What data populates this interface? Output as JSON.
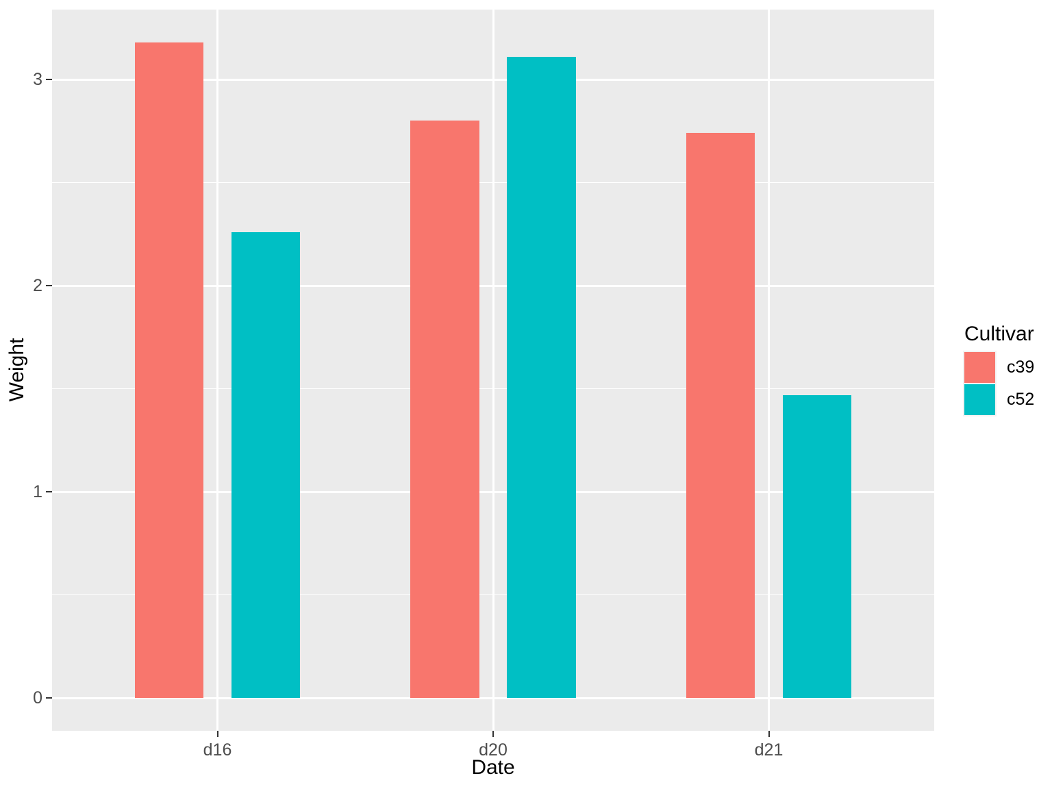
{
  "chart_data": {
    "type": "bar",
    "title": "",
    "xlabel": "Date",
    "ylabel": "Weight",
    "categories": [
      "d16",
      "d20",
      "d21"
    ],
    "series": [
      {
        "name": "c39",
        "color": "#F8766D",
        "values": [
          3.18,
          2.8,
          2.74
        ]
      },
      {
        "name": "c52",
        "color": "#00BFC4",
        "values": [
          2.26,
          3.11,
          1.47
        ]
      }
    ],
    "ylim": [
      -0.159,
      3.339
    ],
    "yticks": [
      0,
      1,
      2,
      3
    ],
    "ytick_labels": [
      "0",
      "1",
      "2",
      "3"
    ],
    "minor_gridlines": [
      0.5,
      1.5,
      2.5
    ],
    "legend": {
      "title": "Cultivar",
      "position": "right"
    },
    "grid": true,
    "layout_hints": {
      "grouping": "dodged",
      "panel_bg": "#EBEBEB",
      "grid_color": "#FFFFFF",
      "tick_color": "#333333",
      "tick_label_color": "#4D4D4D",
      "axis_title_color": "#000000",
      "background": "#FFFFFF"
    }
  }
}
